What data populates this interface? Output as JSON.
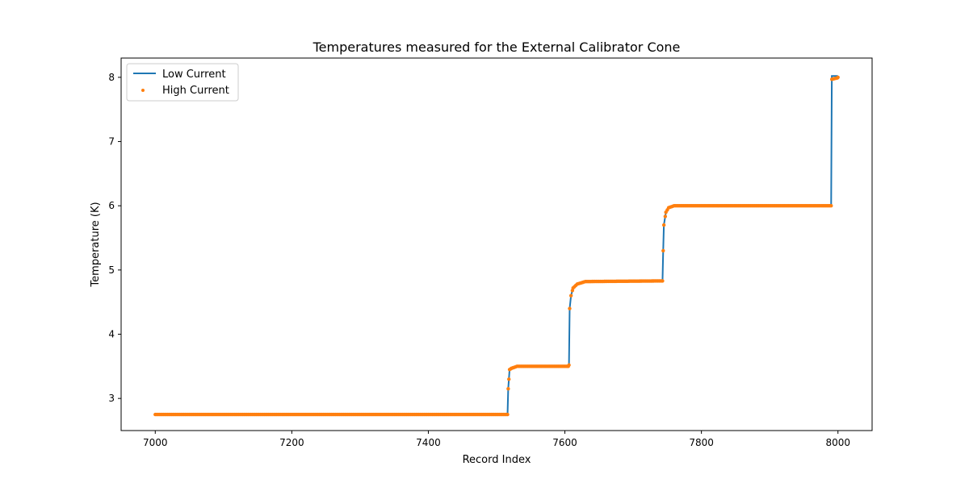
{
  "chart_data": {
    "type": "line",
    "title": "Temperatures measured for the External Calibrator Cone",
    "xlabel": "Record Index",
    "ylabel": "Temperature (K)",
    "xlim": [
      6950,
      8050
    ],
    "ylim": [
      2.5,
      8.3
    ],
    "xticks": [
      7000,
      7200,
      7400,
      7600,
      7800,
      8000
    ],
    "yticks": [
      3,
      4,
      5,
      6,
      7,
      8
    ],
    "grid": false,
    "legend_position": "top-left",
    "series": [
      {
        "name": "Low Current",
        "kind": "line",
        "color": "#1f77b4",
        "x": [
          7000,
          7516,
          7517,
          7518,
          7519,
          7522,
          7530,
          7605,
          7606,
          7607,
          7609,
          7612,
          7618,
          7630,
          7743,
          7744,
          7745,
          7748,
          7752,
          7760,
          7990,
          7991,
          7999,
          8000
        ],
        "y": [
          2.75,
          2.75,
          3.15,
          3.3,
          3.45,
          3.47,
          3.5,
          3.5,
          3.52,
          4.4,
          4.6,
          4.72,
          4.78,
          4.82,
          4.83,
          5.3,
          5.7,
          5.9,
          5.97,
          6.0,
          6.0,
          8.02,
          8.02,
          8.0
        ]
      },
      {
        "name": "High Current",
        "kind": "scatter",
        "color": "#ff7f0e",
        "x": [
          7000,
          7516,
          7517,
          7518,
          7519,
          7522,
          7530,
          7605,
          7606,
          7607,
          7609,
          7612,
          7618,
          7630,
          7743,
          7744,
          7745,
          7748,
          7752,
          7760,
          7990,
          7991,
          7999,
          8000
        ],
        "y": [
          2.75,
          2.75,
          3.15,
          3.3,
          3.45,
          3.47,
          3.5,
          3.5,
          3.52,
          4.4,
          4.6,
          4.72,
          4.78,
          4.82,
          4.83,
          5.3,
          5.7,
          5.9,
          5.97,
          6.0,
          6.0,
          7.97,
          7.99,
          8.0
        ]
      }
    ]
  }
}
